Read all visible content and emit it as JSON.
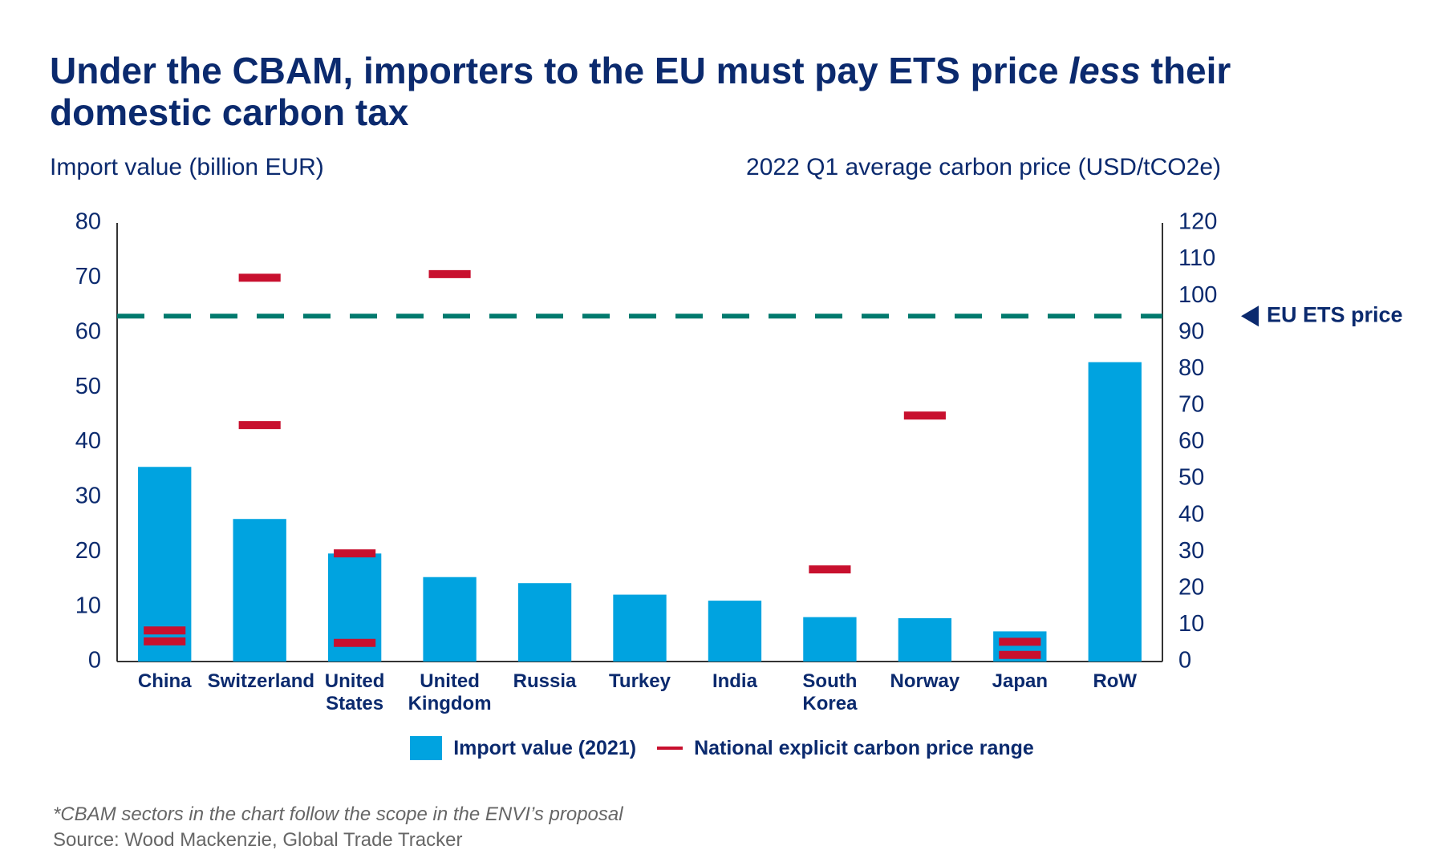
{
  "chart_data": {
    "type": "bar",
    "title": [
      "Under the CBAM, importers to the EU must pay ETS price",
      "less",
      "their domestic carbon tax"
    ],
    "y_label": "Import value (billion EUR)",
    "y2_label": "2022 Q1 average carbon price (USD/tCO2e)",
    "categories": [
      "China",
      "Switzerland",
      "United\nStates",
      "United\nKingdom",
      "Russia",
      "Turkey",
      "India",
      "South\nKorea",
      "Norway",
      "Japan",
      "RoW"
    ],
    "series": [
      {
        "name": "Import value (2021)",
        "color": "#00a3e0",
        "values": [
          35.5,
          26,
          19.7,
          15.4,
          14.3,
          12.2,
          11.1,
          8.1,
          7.9,
          5.5,
          54.6
        ]
      },
      {
        "name": "National explicit carbon price range",
        "color": "#c8102e",
        "axis": "y2",
        "type": "range",
        "low": [
          5.5,
          64.7,
          5.1,
          null,
          null,
          null,
          null,
          null,
          null,
          1.8,
          null
        ],
        "high": [
          8.5,
          105,
          29.6,
          106,
          null,
          null,
          null,
          25.2,
          67.3,
          5.4,
          null
        ]
      }
    ],
    "reference_line": {
      "value": 94.5,
      "axis": "y2",
      "label": "EU ETS price",
      "color": "#007a6e"
    },
    "ylim": [
      0,
      80
    ],
    "yticks": [
      0,
      10,
      20,
      30,
      40,
      50,
      60,
      70,
      80
    ],
    "y2lim": [
      0,
      120
    ],
    "y2ticks": [
      0,
      10,
      20,
      30,
      40,
      50,
      60,
      70,
      80,
      90,
      100,
      110,
      120
    ],
    "grid": false,
    "footnotes": [
      "*CBAM sectors in the chart follow the scope in the ENVI’s proposal",
      "Source: Wood Mackenzie, Global Trade Tracker"
    ]
  }
}
